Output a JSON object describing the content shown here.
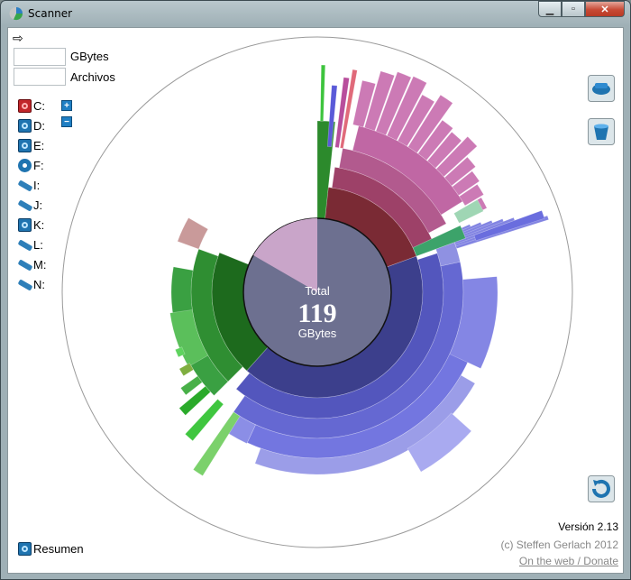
{
  "window": {
    "title": "Scanner"
  },
  "stats": {
    "gbytes_value": "",
    "gbytes_label": "GBytes",
    "files_value": "",
    "files_label": "Archivos"
  },
  "drives": [
    {
      "label": "C:",
      "icon": "hard-drive-red-icon"
    },
    {
      "label": "D:",
      "icon": "hard-drive-icon"
    },
    {
      "label": "E:",
      "icon": "hard-drive-icon"
    },
    {
      "label": "F:",
      "icon": "cd-drive-icon"
    },
    {
      "label": "I:",
      "icon": "usb-drive-icon"
    },
    {
      "label": "J:",
      "icon": "usb-drive-icon"
    },
    {
      "label": "K:",
      "icon": "hard-drive-icon"
    },
    {
      "label": "L:",
      "icon": "usb-drive-icon"
    },
    {
      "label": "M:",
      "icon": "usb-drive-icon"
    },
    {
      "label": "N:",
      "icon": "usb-drive-icon"
    }
  ],
  "zoom": {
    "plus": "+",
    "minus": "−"
  },
  "center": {
    "top": "Total",
    "value": "119",
    "unit": "GBytes"
  },
  "footer": {
    "resumen": "Resumen",
    "version": "Versión 2.13",
    "copyright": "(c) Steffen Gerlach 2012",
    "link": "On the web / Donate"
  },
  "colors": {
    "blue": "#5b5fd0",
    "green": "#2c8a2c",
    "red": "#7a2a34",
    "pink": "#b84e9c",
    "center": "#6d7090",
    "center_pink": "#c9a5c9"
  }
}
